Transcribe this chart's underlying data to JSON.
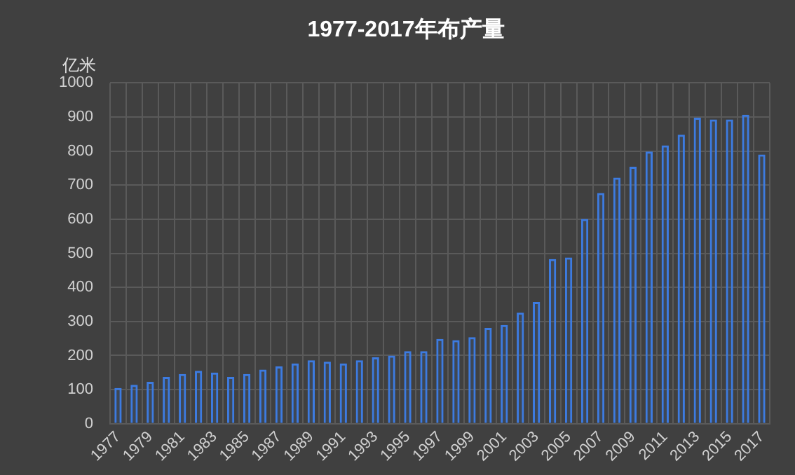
{
  "chart_data": {
    "type": "bar",
    "title": "1977-2017年布产量",
    "ylabel": "亿米",
    "categories": [
      "1977",
      null,
      "1979",
      null,
      "1981",
      null,
      "1983",
      null,
      "1985",
      null,
      "1987",
      null,
      "1989",
      null,
      "1991",
      null,
      "1993",
      null,
      "1995",
      null,
      "1997",
      null,
      "1999",
      null,
      "2001",
      null,
      "2003",
      null,
      "2005",
      null,
      "2007",
      null,
      "2009",
      null,
      "2011",
      null,
      "2013",
      null,
      "2015",
      null,
      "2017"
    ],
    "values": [
      105,
      114,
      123,
      137,
      146,
      155,
      150,
      137,
      146,
      159,
      168,
      177,
      186,
      182,
      177,
      186,
      195,
      200,
      213,
      213,
      249,
      245,
      254,
      281,
      290,
      326,
      357,
      483,
      488,
      601,
      677,
      722,
      754,
      799,
      817,
      848,
      898,
      893,
      893,
      907,
      790
    ],
    "color": "#3d7be0",
    "ylim": [
      0,
      1000
    ],
    "yticks": [
      0,
      100,
      200,
      300,
      400,
      500,
      600,
      700,
      800,
      900,
      1000
    ],
    "grid": true,
    "legend": false
  }
}
